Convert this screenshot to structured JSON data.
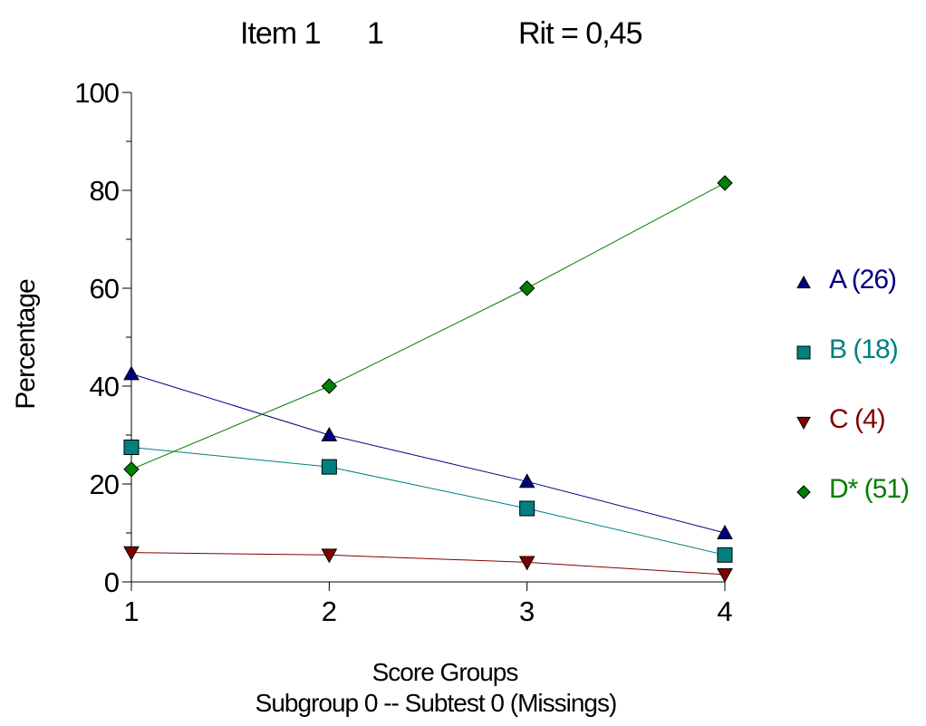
{
  "title": {
    "item": "Item 1",
    "number": "1",
    "rit": "Rit = 0,45"
  },
  "chart_data": {
    "type": "line",
    "ylabel": "Percentage",
    "xlabel": "Score Groups",
    "subtitle": "Subgroup 0  --  Subtest 0 (Missings)",
    "x": [
      1,
      2,
      3,
      4
    ],
    "xlim": [
      1,
      4
    ],
    "ylim": [
      0,
      100
    ],
    "y_ticks": [
      0,
      20,
      40,
      60,
      80,
      100
    ],
    "x_ticks": [
      1,
      2,
      3,
      4
    ],
    "legend_position": "right",
    "series": [
      {
        "name": "A (26)",
        "values": [
          42.5,
          30,
          20.5,
          10
        ],
        "color": "#000080",
        "marker": "triangle-up"
      },
      {
        "name": "B (18)",
        "values": [
          27.5,
          23.5,
          15,
          5.5
        ],
        "color": "#008080",
        "marker": "square"
      },
      {
        "name": "C (4)",
        "values": [
          6,
          5.5,
          4,
          1.5
        ],
        "color": "#800000",
        "marker": "triangle-down"
      },
      {
        "name": "D* (51)",
        "values": [
          23,
          40,
          60,
          81.5
        ],
        "color": "#008000",
        "marker": "diamond"
      }
    ]
  }
}
